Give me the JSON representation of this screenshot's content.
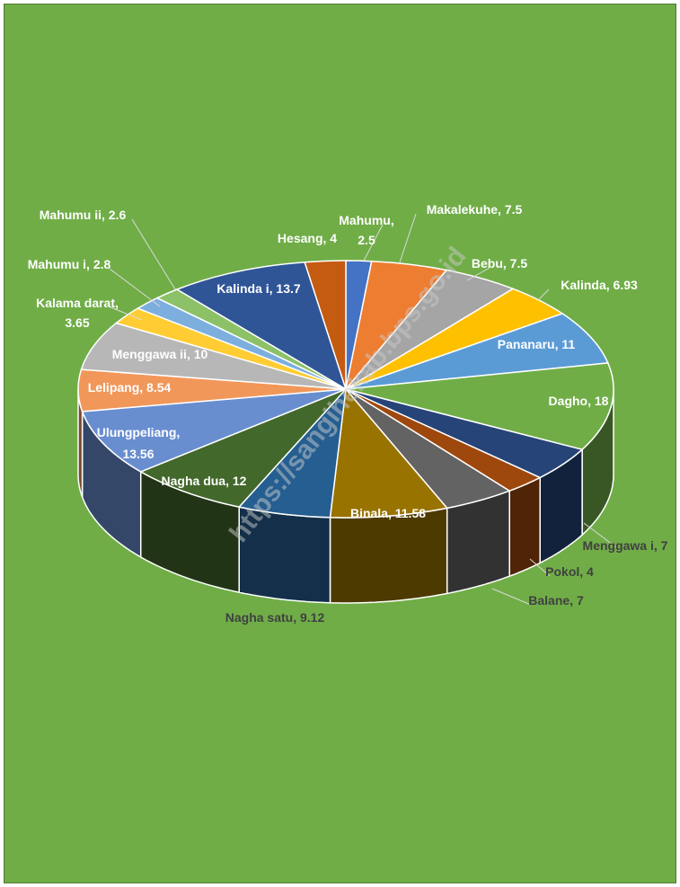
{
  "background": "#70ad47",
  "watermark": {
    "text": "https://sangihekab.bps.go.id",
    "color": "#c9c9c9"
  },
  "chart_data": {
    "type": "pie",
    "style": "3d exploded-free pie, labels outside, no legend",
    "slices": [
      {
        "name": "Mahumu",
        "value": 2.5,
        "color": "#4472c4",
        "label": "Mahumu, 2.5"
      },
      {
        "name": "Makalekuhe",
        "value": 7.5,
        "color": "#ed7d31",
        "label": "Makalekuhe, 7.5"
      },
      {
        "name": "Bebu",
        "value": 7.5,
        "color": "#a5a5a5",
        "label": "Bebu, 7.5"
      },
      {
        "name": "Kalinda",
        "value": 6.93,
        "color": "#ffc000",
        "label": "Kalinda, 6.93"
      },
      {
        "name": "Pananaru",
        "value": 11,
        "color": "#5b9bd5",
        "label": "Pananaru, 11"
      },
      {
        "name": "Dagho",
        "value": 18,
        "color": "#70ad47",
        "label": "Dagho, 18"
      },
      {
        "name": "Menggawa i",
        "value": 7,
        "color": "#264478",
        "label": "Menggawa i, 7"
      },
      {
        "name": "Pokol",
        "value": 4,
        "color": "#9e480e",
        "label": "Pokol, 4"
      },
      {
        "name": "Balane",
        "value": 7,
        "color": "#636363",
        "label": "Balane, 7"
      },
      {
        "name": "Binala",
        "value": 11.58,
        "color": "#997300",
        "label": "Binala, 11.58"
      },
      {
        "name": "Nagha satu",
        "value": 9.12,
        "color": "#255e91",
        "label": "Nagha satu, 9.12"
      },
      {
        "name": "Nagha dua",
        "value": 12,
        "color": "#43682b",
        "label": "Nagha dua, 12"
      },
      {
        "name": "Ulungpeliang",
        "value": 13.56,
        "color": "#698ed0",
        "label": "Ulungpeliang, 13.56"
      },
      {
        "name": "Lelipang",
        "value": 8.54,
        "color": "#f1975a",
        "label": "Lelipang, 8.54"
      },
      {
        "name": "Menggawa ii",
        "value": 10,
        "color": "#b7b7b7",
        "label": "Menggawa ii, 10"
      },
      {
        "name": "Kalama darat",
        "value": 3.65,
        "color": "#ffcd33",
        "label": "Kalama darat, 3.65"
      },
      {
        "name": "Mahumu i",
        "value": 2.8,
        "color": "#7cafdd",
        "label": "Mahumu i, 2.8"
      },
      {
        "name": "Mahumu ii",
        "value": 2.6,
        "color": "#8cc168",
        "label": "Mahumu ii, 2.6"
      },
      {
        "name": "Kalinda i",
        "value": 13.7,
        "color": "#2f5597",
        "label": "Kalinda i, 13.7"
      },
      {
        "name": "Hesang",
        "value": 4,
        "color": "#c55a11",
        "label": "Hesang, 4"
      }
    ]
  }
}
